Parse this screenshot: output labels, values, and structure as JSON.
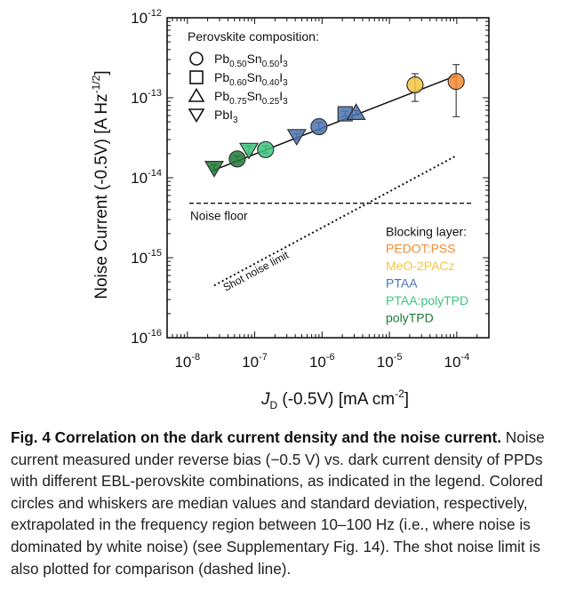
{
  "chart_data": {
    "type": "scatter",
    "xlabel": {
      "pre": "J",
      "sub": "D",
      "post": " (-0.5V) [mA cm",
      "sup": "-2",
      "end": "]"
    },
    "ylabel": {
      "pre": "Noise Current (-0.5V) [A Hz",
      "sup": "-1/2",
      "end": "]"
    },
    "x_scale": "log",
    "y_scale": "log",
    "xlim": [
      5e-09,
      0.0003
    ],
    "ylim": [
      1e-16,
      1e-12
    ],
    "x_ticks": [
      {
        "value": 1e-08,
        "base": "10",
        "exp": "-8"
      },
      {
        "value": 1e-07,
        "base": "10",
        "exp": "-7"
      },
      {
        "value": 1e-06,
        "base": "10",
        "exp": "-6"
      },
      {
        "value": 1e-05,
        "base": "10",
        "exp": "-5"
      },
      {
        "value": 0.0001,
        "base": "10",
        "exp": "-4"
      }
    ],
    "y_ticks": [
      {
        "value": 1e-12,
        "base": "10",
        "exp": "-12"
      },
      {
        "value": 1e-13,
        "base": "10",
        "exp": "-13"
      },
      {
        "value": 1e-14,
        "base": "10",
        "exp": "-14"
      },
      {
        "value": 1e-15,
        "base": "10",
        "exp": "-15"
      },
      {
        "value": 1e-16,
        "base": "10",
        "exp": "-16"
      }
    ],
    "legend_composition": {
      "title": "Perovskite composition:",
      "placement": "top-left",
      "entries": [
        {
          "marker": "circle",
          "parts": [
            [
              "Pb",
              ""
            ],
            [
              "0.50",
              "sub"
            ],
            [
              "Sn",
              ""
            ],
            [
              "0.50",
              "sub"
            ],
            [
              "I",
              ""
            ],
            [
              "3",
              "sub"
            ]
          ]
        },
        {
          "marker": "square",
          "parts": [
            [
              "Pb",
              ""
            ],
            [
              "0.60",
              "sub"
            ],
            [
              "Sn",
              ""
            ],
            [
              "0.40",
              "sub"
            ],
            [
              "I",
              ""
            ],
            [
              "3",
              "sub"
            ]
          ]
        },
        {
          "marker": "triangle-up",
          "parts": [
            [
              "Pb",
              ""
            ],
            [
              "0.75",
              "sub"
            ],
            [
              "Sn",
              ""
            ],
            [
              "0.25",
              "sub"
            ],
            [
              "I",
              ""
            ],
            [
              "3",
              "sub"
            ]
          ]
        },
        {
          "marker": "triangle-down",
          "parts": [
            [
              "PbI",
              ""
            ],
            [
              "3",
              "sub"
            ]
          ]
        }
      ]
    },
    "legend_blocking": {
      "title": "Blocking layer:",
      "placement": "bottom-right",
      "entries": [
        {
          "label": "PEDOT:PSS",
          "color": "#f28a30"
        },
        {
          "label": "MeO-2PACz",
          "color": "#f5c542"
        },
        {
          "label": "PTAA",
          "color": "#4a72b0"
        },
        {
          "label": "PTAA:polyTPD",
          "color": "#3cc47c"
        },
        {
          "label": "polyTPD",
          "color": "#1d7a36"
        }
      ]
    },
    "noise_floor": {
      "label": "Noise floor",
      "y": 4.8e-15
    },
    "shot_noise_limit": {
      "label": "Shot noise limit",
      "x": [
        2.5e-08,
        0.0001
      ],
      "y": [
        4.5e-16,
        1.9e-14
      ]
    },
    "fit_line": {
      "x": [
        2.5e-08,
        0.0001
      ],
      "y": [
        1.25e-14,
        1.9e-13
      ]
    },
    "points": [
      {
        "x": 2.5e-08,
        "y": 1.32e-14,
        "yerr_low": 1.22e-14,
        "yerr_high": 1.45e-14,
        "marker": "triangle-down",
        "color": "#1d7a36"
      },
      {
        "x": 5.5e-08,
        "y": 1.72e-14,
        "yerr_low": 1.6e-14,
        "yerr_high": 1.87e-14,
        "marker": "circle",
        "color": "#1d7a36"
      },
      {
        "x": 8.2e-08,
        "y": 2.22e-14,
        "yerr_low": 2e-14,
        "yerr_high": 2.48e-14,
        "marker": "triangle-down",
        "color": "#3cc47c"
      },
      {
        "x": 1.45e-07,
        "y": 2.25e-14,
        "yerr_low": 2.02e-14,
        "yerr_high": 2.5e-14,
        "marker": "circle",
        "color": "#3cc47c"
      },
      {
        "x": 4.2e-07,
        "y": 3.3e-14,
        "yerr_low": 3.05e-14,
        "yerr_high": 3.55e-14,
        "marker": "triangle-down",
        "color": "#4a72b0"
      },
      {
        "x": 9e-07,
        "y": 4.35e-14,
        "yerr_low": 3.9e-14,
        "yerr_high": 4.9e-14,
        "marker": "circle",
        "color": "#4a72b0"
      },
      {
        "x": 2.2e-06,
        "y": 6.3e-14,
        "yerr_low": 5.9e-14,
        "yerr_high": 6.8e-14,
        "marker": "square",
        "color": "#4a72b0"
      },
      {
        "x": 3.2e-06,
        "y": 6.5e-14,
        "yerr_low": 6.1e-14,
        "yerr_high": 6.9e-14,
        "marker": "triangle-up",
        "color": "#4a72b0"
      },
      {
        "x": 2.4e-05,
        "y": 1.45e-13,
        "yerr_low": 9e-14,
        "yerr_high": 2e-13,
        "marker": "circle",
        "color": "#f5c542"
      },
      {
        "x": 9.8e-05,
        "y": 1.6e-13,
        "yerr_low": 5.8e-14,
        "yerr_high": 2.6e-13,
        "marker": "circle",
        "color": "#f28a30"
      }
    ]
  },
  "caption": {
    "title": "Fig. 4 Correlation on the dark current density and the noise current.",
    "body": "Noise current measured under reverse bias (−0.5 V) vs. dark current density of PPDs with different EBL-perovskite combinations, as indicated in the legend. Colored circles and whiskers are median values and standard deviation, respectively, extrapolated in the frequency region between 10–100 Hz (i.e., where noise is dominated by white noise) (see Supplementary Fig. 14). The shot noise limit is also plotted for comparison (dashed line)."
  }
}
